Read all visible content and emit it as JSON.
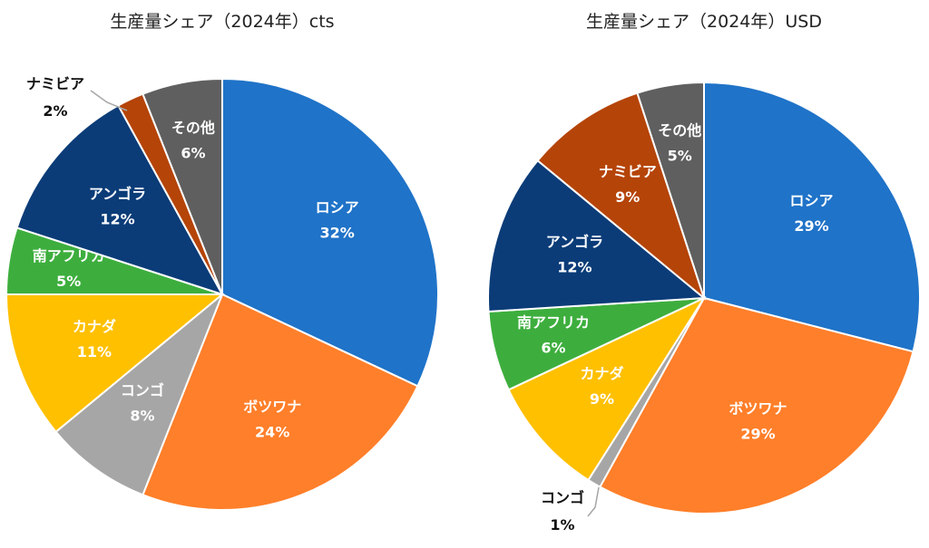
{
  "chart_data": [
    {
      "type": "pie",
      "title": "生産量シェア（2024年）cts",
      "slices": [
        {
          "label": "ロシア",
          "value": 32,
          "value_label": "32%",
          "color": "#1F73C8"
        },
        {
          "label": "ボツワナ",
          "value": 24,
          "value_label": "24%",
          "color": "#FF7F2A"
        },
        {
          "label": "コンゴ",
          "value": 8,
          "value_label": "8%",
          "color": "#A6A6A6"
        },
        {
          "label": "カナダ",
          "value": 11,
          "value_label": "11%",
          "color": "#FFC000"
        },
        {
          "label": "南アフリカ",
          "value": 5,
          "value_label": "5%",
          "color": "#3DAE3D"
        },
        {
          "label": "アンゴラ",
          "value": 12,
          "value_label": "12%",
          "color": "#0B3C78"
        },
        {
          "label": "ナミビア",
          "value": 2,
          "value_label": "2%",
          "color": "#B54408"
        },
        {
          "label": "その他",
          "value": 6,
          "value_label": "6%",
          "color": "#5F5F5F"
        }
      ]
    },
    {
      "type": "pie",
      "title": "生産量シェア（2024年）USD",
      "slices": [
        {
          "label": "ロシア",
          "value": 29,
          "value_label": "29%",
          "color": "#1F73C8"
        },
        {
          "label": "ボツワナ",
          "value": 29,
          "value_label": "29%",
          "color": "#FF7F2A"
        },
        {
          "label": "コンゴ",
          "value": 1,
          "value_label": "1%",
          "color": "#A6A6A6"
        },
        {
          "label": "カナダ",
          "value": 9,
          "value_label": "9%",
          "color": "#FFC000"
        },
        {
          "label": "南アフリカ",
          "value": 6,
          "value_label": "6%",
          "color": "#3DAE3D"
        },
        {
          "label": "アンゴラ",
          "value": 12,
          "value_label": "12%",
          "color": "#0B3C78"
        },
        {
          "label": "ナミビア",
          "value": 9,
          "value_label": "9%",
          "color": "#B54408"
        },
        {
          "label": "その他",
          "value": 5,
          "value_label": "5%",
          "color": "#5F5F5F"
        }
      ]
    }
  ]
}
